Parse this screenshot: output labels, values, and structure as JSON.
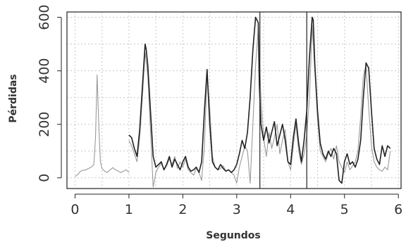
{
  "chart_data": {
    "type": "line",
    "title": "",
    "xlabel": "Segundos",
    "ylabel": "Pérdidas",
    "xlim": [
      -0.15,
      6.05
    ],
    "ylim": [
      -40,
      620
    ],
    "xticks": [
      0,
      1,
      2,
      3,
      4,
      5,
      6
    ],
    "yticks": [
      0,
      200,
      400,
      600
    ],
    "grid": true,
    "grid_style": "dotted",
    "vlines": [
      3.43,
      4.3
    ],
    "colors": {
      "series_light": "#9a9a9a",
      "series_dark": "#222222",
      "grid": "#c8c8c8",
      "axis": "#222222"
    },
    "series": [
      {
        "color": "#9a9a9a",
        "x": [
          0.0,
          0.05,
          0.1,
          0.15,
          0.2,
          0.25,
          0.3,
          0.35,
          0.38,
          0.41,
          0.44,
          0.47,
          0.5,
          0.55,
          0.6,
          0.65,
          0.7,
          0.75,
          0.8,
          0.85,
          0.9,
          0.95,
          1.0
        ],
        "values": [
          5,
          12,
          25,
          28,
          30,
          35,
          40,
          50,
          150,
          385,
          200,
          60,
          35,
          25,
          20,
          30,
          38,
          30,
          25,
          20,
          25,
          30,
          20
        ]
      },
      {
        "color": "#9a9a9a",
        "x": [
          1.0,
          1.05,
          1.1,
          1.15,
          1.2,
          1.25,
          1.3,
          1.35,
          1.4,
          1.45,
          1.5,
          1.55,
          1.6,
          1.65,
          1.7,
          1.75,
          1.8,
          1.85,
          1.9,
          1.95,
          2.0,
          2.05,
          2.1,
          2.15,
          2.2,
          2.25,
          2.3,
          2.35,
          2.4,
          2.45,
          2.5,
          2.55,
          2.6,
          2.65,
          2.7,
          2.75,
          2.8,
          2.85,
          2.9,
          2.95,
          3.0,
          3.05,
          3.1,
          3.15,
          3.2,
          3.25,
          3.3,
          3.35,
          3.4,
          3.45,
          3.5,
          3.55,
          3.6,
          3.65,
          3.7,
          3.75,
          3.8,
          3.85,
          3.9,
          3.95,
          4.0,
          4.05,
          4.1,
          4.15,
          4.2,
          4.25,
          4.3,
          4.35,
          4.4,
          4.45,
          4.5,
          4.55,
          4.6,
          4.65,
          4.7,
          4.75,
          4.8,
          4.85,
          4.9,
          4.95,
          5.0,
          5.05,
          5.1,
          5.15,
          5.2,
          5.25,
          5.3,
          5.35,
          5.4,
          5.45,
          5.5,
          5.55,
          5.6,
          5.65,
          5.7,
          5.75,
          5.8,
          5.85
        ],
        "values": [
          140,
          120,
          90,
          60,
          150,
          300,
          470,
          380,
          180,
          -35,
          20,
          40,
          55,
          30,
          45,
          70,
          50,
          80,
          35,
          60,
          40,
          70,
          30,
          20,
          10,
          35,
          20,
          -10,
          120,
          390,
          260,
          80,
          40,
          30,
          35,
          45,
          25,
          30,
          20,
          10,
          -20,
          40,
          80,
          120,
          100,
          -20,
          200,
          420,
          560,
          300,
          150,
          80,
          170,
          110,
          150,
          200,
          90,
          140,
          180,
          60,
          30,
          120,
          200,
          100,
          50,
          90,
          160,
          300,
          570,
          400,
          220,
          100,
          80,
          60,
          90,
          110,
          70,
          120,
          60,
          40,
          20,
          60,
          30,
          45,
          60,
          100,
          230,
          380,
          420,
          260,
          120,
          60,
          40,
          30,
          25,
          40,
          30,
          100
        ]
      },
      {
        "color": "#222222",
        "x": [
          1.0,
          1.05,
          1.1,
          1.15,
          1.2,
          1.25,
          1.3,
          1.32,
          1.35,
          1.4,
          1.45,
          1.5,
          1.55,
          1.6,
          1.65,
          1.7,
          1.75,
          1.8,
          1.85,
          1.9,
          1.95,
          2.0,
          2.05,
          2.1,
          2.15,
          2.2,
          2.25,
          2.3,
          2.35,
          2.4,
          2.45,
          2.5,
          2.55,
          2.6,
          2.65,
          2.7,
          2.75,
          2.8,
          2.85,
          2.9,
          2.95,
          3.0,
          3.05,
          3.1,
          3.15,
          3.2,
          3.25,
          3.3,
          3.35,
          3.4,
          3.42,
          3.45,
          3.5,
          3.55,
          3.6,
          3.65,
          3.7,
          3.75,
          3.8,
          3.85,
          3.9,
          3.95,
          4.0,
          4.05,
          4.1,
          4.15,
          4.2,
          4.25,
          4.3,
          4.35,
          4.4,
          4.42,
          4.45,
          4.5,
          4.55,
          4.6,
          4.65,
          4.7,
          4.75,
          4.8,
          4.85,
          4.9,
          4.95,
          5.0,
          5.05,
          5.1,
          5.15,
          5.2,
          5.25,
          5.3,
          5.35,
          5.4,
          5.45,
          5.5,
          5.55,
          5.6,
          5.65,
          5.7,
          5.75,
          5.8,
          5.85
        ],
        "values": [
          160,
          150,
          110,
          80,
          180,
          340,
          500,
          480,
          420,
          250,
          80,
          40,
          50,
          60,
          30,
          50,
          80,
          40,
          70,
          50,
          30,
          60,
          80,
          40,
          25,
          30,
          40,
          20,
          60,
          250,
          405,
          200,
          60,
          40,
          30,
          50,
          35,
          25,
          30,
          20,
          30,
          50,
          90,
          140,
          110,
          170,
          300,
          480,
          600,
          580,
          350,
          200,
          140,
          190,
          130,
          170,
          210,
          120,
          160,
          200,
          140,
          60,
          50,
          150,
          220,
          130,
          60,
          140,
          250,
          450,
          600,
          590,
          420,
          250,
          130,
          90,
          70,
          100,
          80,
          110,
          90,
          -10,
          -20,
          60,
          90,
          50,
          60,
          40,
          70,
          140,
          300,
          430,
          410,
          250,
          110,
          70,
          50,
          120,
          80,
          120,
          110
        ]
      }
    ]
  }
}
